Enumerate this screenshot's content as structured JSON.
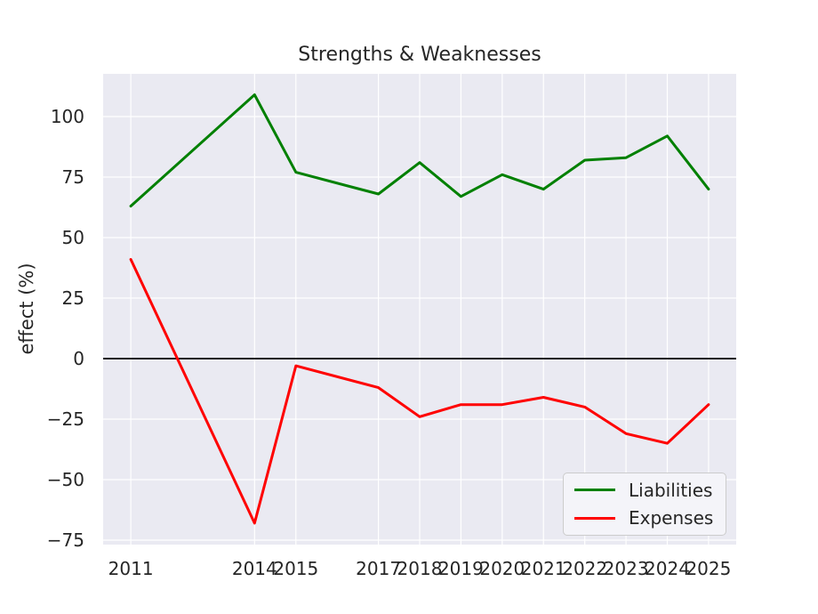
{
  "figure": {
    "background": "#ffffff"
  },
  "chart_data": {
    "type": "line",
    "title": "Strengths & Weaknesses",
    "xlabel": "",
    "ylabel": "effect (%)",
    "x": [
      2011,
      2014,
      2015,
      2017,
      2018,
      2019,
      2020,
      2021,
      2022,
      2023,
      2024,
      2025
    ],
    "series": [
      {
        "name": "Liabilities",
        "color": "#008000",
        "values": [
          63,
          109,
          77,
          68,
          81,
          67,
          76,
          70,
          82,
          83,
          92,
          70
        ]
      },
      {
        "name": "Expenses",
        "color": "#ff0000",
        "values": [
          41,
          -68,
          -3,
          -12,
          -24,
          -19,
          -19,
          -16,
          -20,
          -31,
          -35,
          -19
        ]
      }
    ],
    "xticks": [
      2011,
      2014,
      2015,
      2017,
      2018,
      2019,
      2020,
      2021,
      2022,
      2023,
      2024,
      2025
    ],
    "xtick_labels": [
      "2011",
      "2014",
      "2015",
      "2017",
      "2018",
      "2019",
      "2020",
      "2021",
      "2022",
      "2023",
      "2024",
      "2025"
    ],
    "yticks": [
      -75,
      -50,
      -25,
      0,
      25,
      50,
      75,
      100
    ],
    "ytick_labels": [
      "−75",
      "−50",
      "−25",
      "0",
      "25",
      "50",
      "75",
      "100"
    ],
    "xlim": [
      2010.33,
      2025.67
    ],
    "ylim": [
      -76.85,
      117.65
    ],
    "grid": true,
    "zero_line": 0,
    "zero_line_color": "#000000",
    "legend_position": "lower right",
    "plot_background": "#eaeaf2",
    "grid_color": "#ffffff",
    "text_color": "#262626"
  }
}
